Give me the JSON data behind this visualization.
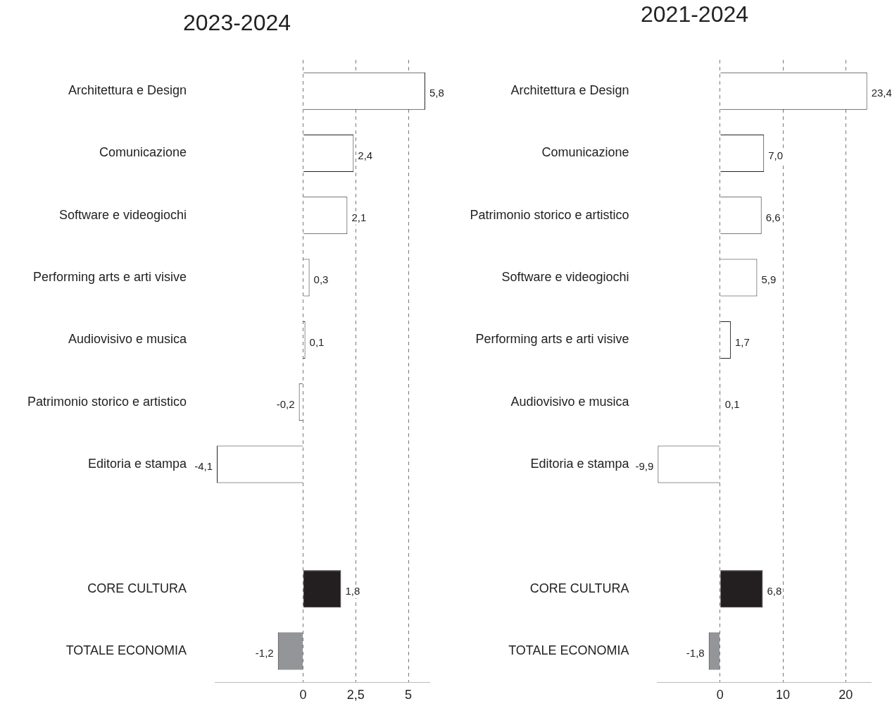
{
  "chart_data": [
    {
      "type": "bar",
      "orientation": "horizontal",
      "title": "2023-2024",
      "categories": [
        "Architettura e Design",
        "Comunicazione",
        "Software e videogiochi",
        "Performing arts e arti visive",
        "Audiovisivo e musica",
        "Patrimonio storico e artistico",
        "Editoria e stampa",
        null,
        "CORE CULTURA",
        "TOTALE ECONOMIA"
      ],
      "values": [
        5.8,
        2.4,
        2.1,
        0.3,
        0.1,
        -0.2,
        -4.1,
        null,
        1.8,
        -1.2
      ],
      "value_labels": [
        "5,8",
        "2,4",
        "2,1",
        "0,3",
        "0,1",
        "-0,2",
        "-4,1",
        null,
        "1,8",
        "-1,2"
      ],
      "colors": [
        "#ffffff",
        "#ffffff",
        "#ffffff",
        "#ffffff",
        "#ffffff",
        "#ffffff",
        "#ffffff",
        null,
        "#231f20",
        "#939598"
      ],
      "xlim": [
        -4.2,
        6
      ],
      "xticks": [
        0,
        {
          "value": 2.5,
          "label": "2,5"
        },
        5
      ],
      "grid": "x",
      "legend": false
    },
    {
      "type": "bar",
      "orientation": "horizontal",
      "title": "2021-2024",
      "categories": [
        "Architettura e Design",
        "Comunicazione",
        "Patrimonio storico e artistico",
        "Software e videogiochi",
        "Performing arts e arti visive",
        "Audiovisivo e musica",
        "Editoria e stampa",
        null,
        "CORE CULTURA",
        "TOTALE ECONOMIA"
      ],
      "values": [
        23.4,
        7.0,
        6.6,
        5.9,
        1.7,
        0.1,
        -9.9,
        null,
        6.8,
        -1.8
      ],
      "value_labels": [
        "23,4",
        "7,0",
        "6,6",
        "5,9",
        "1,7",
        "0,1",
        "-9,9",
        null,
        "6,8",
        "-1,8"
      ],
      "colors": [
        "#ffffff",
        "#ffffff",
        "#ffffff",
        "#ffffff",
        "#ffffff",
        "#ffffff",
        "#ffffff",
        null,
        "#231f20",
        "#939598"
      ],
      "xlim": [
        -10,
        24
      ],
      "xticks": [
        0,
        10,
        20
      ],
      "grid": "x",
      "legend": false
    }
  ]
}
